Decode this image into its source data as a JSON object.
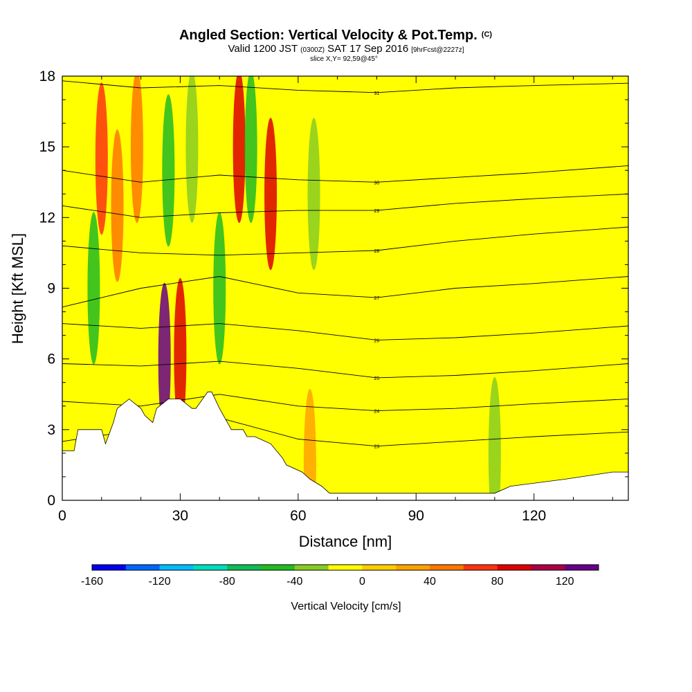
{
  "title": {
    "main": "Angled Section: Vertical Velocity & Pot.Temp.",
    "main_suffix": "(C)",
    "valid_prefix": "Valid 1200 JST",
    "valid_utc": "(0300Z)",
    "valid_date": "SAT 17 Sep 2016",
    "valid_fcst": "[9hrFcst@2227z]",
    "slice": "slice X,Y= 92,59@45°"
  },
  "chart_data": {
    "type": "heatmap",
    "xlabel": "Distance [nm]",
    "ylabel": "Height [Kft MSL]",
    "xlim": [
      0,
      144
    ],
    "ylim": [
      0,
      18
    ],
    "xticks": [
      0,
      30,
      60,
      90,
      120
    ],
    "yticks": [
      0,
      3,
      6,
      9,
      12,
      15,
      18
    ],
    "grid": false,
    "colorbar": {
      "label": "Vertical Velocity [cm/s]",
      "orientation": "horizontal",
      "placement": "bottom",
      "min": -160,
      "max": 140,
      "step": 20,
      "tick_labels": [
        -160,
        -120,
        -80,
        -40,
        0,
        40,
        80,
        120
      ],
      "colors": [
        "#0000ee",
        "#0066ff",
        "#00bbff",
        "#00ddbb",
        "#11bb55",
        "#22bb22",
        "#88cc22",
        "#ffff00",
        "#ffcc00",
        "#ffa200",
        "#ff7700",
        "#ff3311",
        "#dd0000",
        "#aa0044",
        "#660088"
      ]
    },
    "terrain_profile": {
      "distance_nm": [
        0,
        3,
        4,
        10,
        11,
        13,
        14,
        17,
        20,
        21,
        23,
        24,
        27,
        30,
        33,
        34,
        37,
        38,
        40,
        42,
        43,
        46,
        47,
        49,
        53,
        56,
        57,
        61,
        63,
        66,
        68,
        71,
        75,
        90,
        110,
        114,
        128,
        140,
        144
      ],
      "height_kft": [
        2.1,
        2.1,
        3.0,
        3.0,
        2.4,
        3.3,
        3.9,
        4.3,
        3.9,
        3.6,
        3.3,
        3.9,
        4.3,
        4.3,
        3.9,
        3.9,
        4.6,
        4.6,
        3.9,
        3.3,
        3.0,
        3.0,
        2.7,
        2.7,
        2.4,
        1.8,
        1.5,
        1.2,
        0.9,
        0.6,
        0.3,
        0.3,
        0.3,
        0.3,
        0.3,
        0.6,
        0.9,
        1.2,
        1.2
      ]
    },
    "velocity_features": [
      {
        "x_nm": 10,
        "y_kft": 14.5,
        "value_cms": 70
      },
      {
        "x_nm": 14,
        "y_kft": 12.5,
        "value_cms": 50
      },
      {
        "x_nm": 19,
        "y_kft": 15.0,
        "value_cms": 50
      },
      {
        "x_nm": 8,
        "y_kft": 9.0,
        "value_cms": -50
      },
      {
        "x_nm": 26,
        "y_kft": 6.0,
        "value_cms": 120
      },
      {
        "x_nm": 30,
        "y_kft": 6.2,
        "value_cms": 80
      },
      {
        "x_nm": 27,
        "y_kft": 14.0,
        "value_cms": -50
      },
      {
        "x_nm": 33,
        "y_kft": 15.0,
        "value_cms": -40
      },
      {
        "x_nm": 40,
        "y_kft": 9.0,
        "value_cms": -50
      },
      {
        "x_nm": 45,
        "y_kft": 15.0,
        "value_cms": 80
      },
      {
        "x_nm": 48,
        "y_kft": 15.0,
        "value_cms": -60
      },
      {
        "x_nm": 53,
        "y_kft": 13.0,
        "value_cms": 80
      },
      {
        "x_nm": 64,
        "y_kft": 13.0,
        "value_cms": -40
      },
      {
        "x_nm": 63,
        "y_kft": 1.5,
        "value_cms": 30
      },
      {
        "x_nm": 110,
        "y_kft": 2.0,
        "value_cms": -40
      }
    ],
    "isentrope_series": [
      {
        "label": "31",
        "x_nm": [
          0,
          20,
          40,
          60,
          80,
          100,
          120,
          144
        ],
        "height_kft": [
          17.8,
          17.5,
          17.6,
          17.4,
          17.3,
          17.5,
          17.6,
          17.7
        ]
      },
      {
        "label": "30",
        "x_nm": [
          0,
          20,
          40,
          60,
          80,
          100,
          120,
          144
        ],
        "height_kft": [
          14.0,
          13.5,
          13.8,
          13.6,
          13.5,
          13.7,
          13.9,
          14.2
        ]
      },
      {
        "label": "29",
        "x_nm": [
          0,
          20,
          40,
          60,
          80,
          100,
          120,
          144
        ],
        "height_kft": [
          12.5,
          12.0,
          12.2,
          12.3,
          12.3,
          12.6,
          12.8,
          13.0
        ]
      },
      {
        "label": "28",
        "x_nm": [
          0,
          20,
          40,
          60,
          80,
          100,
          120,
          144
        ],
        "height_kft": [
          10.8,
          10.5,
          10.4,
          10.5,
          10.6,
          11.0,
          11.3,
          11.6
        ]
      },
      {
        "label": "27",
        "x_nm": [
          0,
          20,
          40,
          60,
          80,
          100,
          120,
          144
        ],
        "height_kft": [
          8.2,
          9.0,
          9.5,
          8.8,
          8.6,
          9.0,
          9.2,
          9.5
        ]
      },
      {
        "label": "26",
        "x_nm": [
          0,
          20,
          40,
          60,
          80,
          100,
          120,
          144
        ],
        "height_kft": [
          7.5,
          7.3,
          7.5,
          7.2,
          6.8,
          6.9,
          7.1,
          7.4
        ]
      },
      {
        "label": "25",
        "x_nm": [
          0,
          20,
          40,
          60,
          80,
          100,
          120,
          144
        ],
        "height_kft": [
          5.8,
          5.7,
          5.9,
          5.6,
          5.2,
          5.3,
          5.5,
          5.8
        ]
      },
      {
        "label": "24",
        "x_nm": [
          0,
          20,
          40,
          60,
          80,
          100,
          120,
          144
        ],
        "height_kft": [
          4.2,
          4.0,
          4.5,
          4.0,
          3.8,
          3.9,
          4.1,
          4.3
        ]
      },
      {
        "label": "23",
        "x_nm": [
          0,
          20,
          40,
          60,
          80,
          100,
          120,
          144
        ],
        "height_kft": [
          2.5,
          3.0,
          3.5,
          2.6,
          2.3,
          2.5,
          2.7,
          2.9
        ]
      }
    ]
  }
}
